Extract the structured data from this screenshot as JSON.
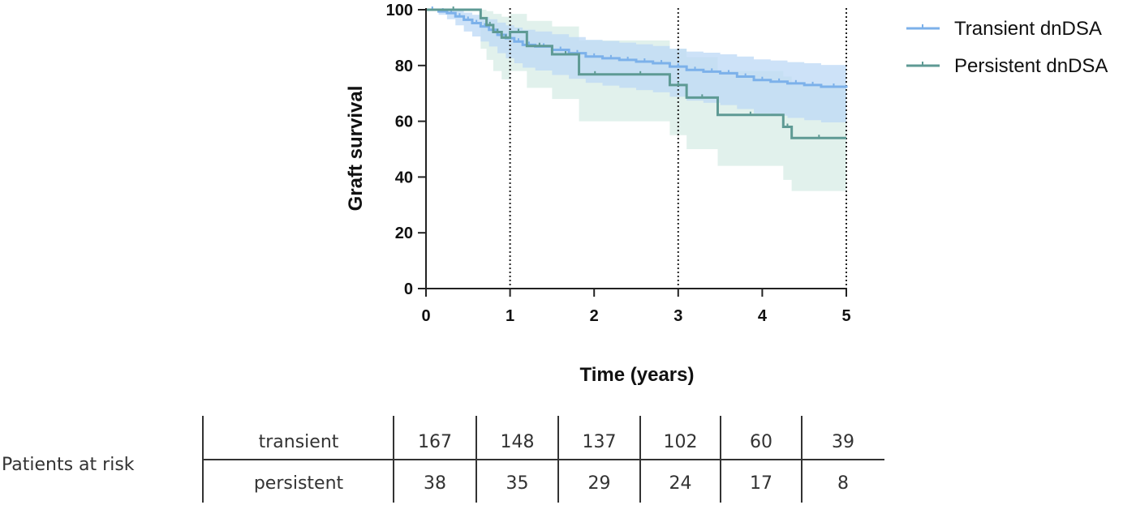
{
  "chart_data": {
    "type": "line",
    "subtype": "kaplan-meier",
    "title": "",
    "xlabel": "Time (years)",
    "ylabel": "Graft survival",
    "xlim": [
      0,
      5
    ],
    "ylim": [
      0,
      100
    ],
    "x_ticks": [
      "0",
      "1",
      "2",
      "3",
      "4",
      "5"
    ],
    "y_ticks": [
      "0",
      "20",
      "40",
      "60",
      "80",
      "100"
    ],
    "reference_lines_x": [
      1,
      3,
      5
    ],
    "legend_position": "top-right",
    "series": [
      {
        "name": "Transient dnDSA",
        "color": "#7cb1ea",
        "band_color": "#bcd8f5",
        "x": [
          0,
          0.15,
          0.25,
          0.35,
          0.45,
          0.55,
          0.65,
          0.75,
          0.85,
          0.95,
          1.05,
          1.15,
          1.3,
          1.5,
          1.7,
          1.9,
          2.1,
          2.3,
          2.5,
          2.7,
          2.9,
          3.1,
          3.3,
          3.5,
          3.7,
          3.9,
          4.1,
          4.3,
          4.5,
          4.7,
          5
        ],
        "y": [
          100,
          99.4,
          98.8,
          97.6,
          96.4,
          95.2,
          94,
          92.8,
          91,
          89.8,
          88.6,
          87.4,
          86.8,
          85.6,
          84.4,
          83.2,
          82.6,
          82,
          81.4,
          80.8,
          79.6,
          78.4,
          77.8,
          77.2,
          76,
          74.8,
          74.2,
          73.6,
          73,
          72.4,
          72
        ],
        "ci_lower": [
          100,
          98.2,
          96.6,
          94.4,
          92.2,
          90.4,
          88.6,
          86.8,
          84.4,
          82.6,
          80.8,
          79.2,
          78.2,
          76.6,
          75.2,
          73.8,
          72.8,
          72,
          71.2,
          70.4,
          68.8,
          67.4,
          66.6,
          65.8,
          64.4,
          62.8,
          62,
          61.2,
          60.4,
          59.6,
          59
        ],
        "ci_upper": [
          100,
          100,
          100,
          99.8,
          99,
          98.2,
          97.4,
          96.6,
          95.4,
          94.4,
          93.6,
          92.8,
          92.2,
          91.2,
          90.2,
          89.2,
          88.8,
          88.2,
          87.6,
          87,
          86,
          85,
          84.6,
          84,
          83.2,
          82.2,
          81.8,
          81.2,
          80.8,
          80.2,
          80
        ]
      },
      {
        "name": "Persistent dnDSA",
        "color": "#5e9a94",
        "band_color": "#dcefe9",
        "x": [
          0,
          0.65,
          0.72,
          0.8,
          0.9,
          1.0,
          1.2,
          1.5,
          1.82,
          2.2,
          2.9,
          3.1,
          3.47,
          4.25,
          4.35,
          5
        ],
        "y": [
          100,
          97,
          94.5,
          92,
          90,
          92,
          87,
          84,
          76.8,
          76.8,
          73,
          68.5,
          62.3,
          58,
          54,
          54
        ],
        "ci_lower": [
          100,
          86,
          82,
          78,
          75,
          78,
          72,
          68,
          60,
          60,
          55,
          50,
          44,
          39,
          35,
          35
        ],
        "ci_upper": [
          100,
          100,
          99.5,
          98.5,
          97.5,
          98.5,
          96,
          94,
          89,
          89,
          86,
          83,
          78,
          76,
          73,
          73
        ]
      }
    ],
    "risk_table": {
      "label": "Patients at risk",
      "rows": [
        {
          "name": "transient",
          "counts": [
            "167",
            "148",
            "137",
            "102",
            "60",
            "39"
          ]
        },
        {
          "name": "persistent",
          "counts": [
            "38",
            "35",
            "29",
            "24",
            "17",
            "8"
          ]
        }
      ]
    }
  }
}
